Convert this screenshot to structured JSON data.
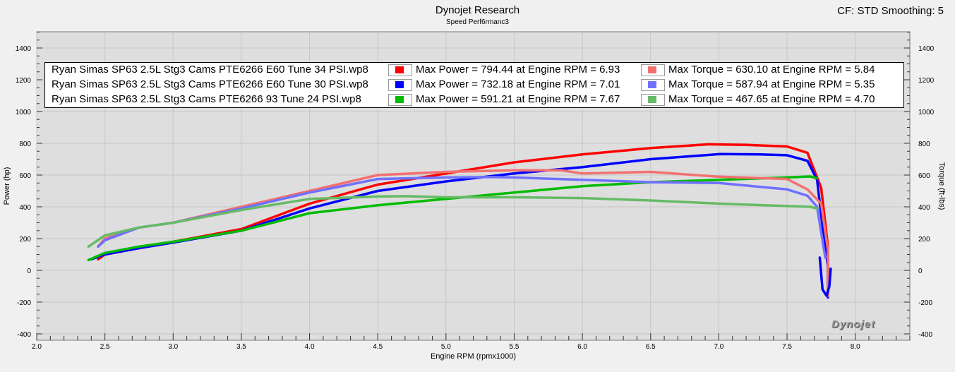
{
  "header": {
    "title": "Dynojet Research",
    "subtitle": "Speed Perf6rmanc3",
    "cf_info": "CF: STD Smoothing: 5"
  },
  "logo_text": "Dynojet",
  "legend": [
    {
      "run": "Ryan Simas SP63 2.5L Stg3 Cams PTE6266 E60 Tune 34 PSI.wp8",
      "power_text": "Max Power = 794.44 at Engine RPM = 6.93",
      "torque_text": "Max Torque = 630.10 at Engine RPM = 5.84",
      "power_color": "#ff0000",
      "torque_color": "#f37070"
    },
    {
      "run": "Ryan Simas SP63 2.5L Stg3 Cams PTE6266 E60 Tune 30 PSI.wp8",
      "power_text": "Max Power = 732.18 at Engine RPM = 7.01",
      "torque_text": "Max Torque = 587.94 at Engine RPM = 5.35",
      "power_color": "#0000ff",
      "torque_color": "#7070ff"
    },
    {
      "run": "Ryan Simas SP63 2.5L Stg3 Cams PTE6266 93 Tune 24 PSI.wp8",
      "power_text": "Max Power = 591.21 at Engine RPM = 7.67",
      "torque_text": "Max Torque = 467.65 at Engine RPM = 4.70",
      "power_color": "#00bb00",
      "torque_color": "#66bb66"
    }
  ],
  "chart_data": {
    "type": "line",
    "xlabel": "Engine RPM (rpmx1000)",
    "ylabel": "Power (hp)",
    "y2label": "Torque (ft-lbs)",
    "xlim": [
      2.0,
      8.4
    ],
    "ylim": [
      -400,
      1500
    ],
    "y2lim": [
      -400,
      1500
    ],
    "xticks": [
      "2.0",
      "2.5",
      "3.0",
      "3.5",
      "4.0",
      "4.5",
      "5.0",
      "5.5",
      "6.0",
      "6.5",
      "7.0",
      "7.5",
      "8.0"
    ],
    "yticks": [
      "-400",
      "-200",
      "0",
      "200",
      "400",
      "600",
      "800",
      "1000",
      "1200",
      "1400"
    ],
    "y2ticks": [
      "-400",
      "-200",
      "0",
      "200",
      "400",
      "600",
      "800",
      "1000",
      "1200",
      "1400"
    ],
    "grid": true,
    "legend_position": "top",
    "series": [
      {
        "name": "Ryan Simas SP63 2.5L Stg3 Cams PTE6266 E60 Tune 34 PSI.wp8",
        "kind": "power",
        "color": "#ff0000",
        "x": [
          2.45,
          2.5,
          2.75,
          3.0,
          3.5,
          4.0,
          4.5,
          5.0,
          5.5,
          6.0,
          6.5,
          6.93,
          7.2,
          7.5,
          7.65,
          7.75,
          7.8,
          7.8
        ],
        "y": [
          70,
          100,
          140,
          180,
          260,
          420,
          540,
          610,
          680,
          730,
          770,
          794,
          790,
          780,
          740,
          520,
          150,
          -160
        ]
      },
      {
        "name": "Ryan Simas SP63 2.5L Stg3 Cams PTE6266 E60 Tune 30 PSI.wp8",
        "kind": "power",
        "color": "#0000ff",
        "x": [
          2.4,
          2.5,
          2.75,
          3.0,
          3.5,
          4.0,
          4.5,
          5.0,
          5.5,
          6.0,
          6.5,
          7.01,
          7.3,
          7.5,
          7.65,
          7.72,
          7.75,
          7.8,
          7.8
        ],
        "y": [
          70,
          100,
          140,
          175,
          250,
          390,
          500,
          560,
          610,
          650,
          700,
          732,
          730,
          725,
          690,
          570,
          350,
          20,
          -170
        ]
      },
      {
        "name": "Ryan Simas SP63 2.5L Stg3 Cams PTE6266 93 Tune 24 PSI.wp8",
        "kind": "power",
        "color": "#00bb00",
        "x": [
          2.38,
          2.5,
          2.75,
          3.0,
          3.5,
          4.0,
          4.5,
          5.0,
          5.5,
          6.0,
          6.5,
          7.0,
          7.5,
          7.67,
          7.72
        ],
        "y": [
          65,
          110,
          150,
          180,
          250,
          360,
          410,
          450,
          490,
          530,
          555,
          570,
          585,
          591,
          580
        ]
      },
      {
        "name": "Ryan Simas SP63 2.5L Stg3 Cams PTE6266 E60 Tune 34 PSI.wp8",
        "kind": "torque",
        "color": "#f37070",
        "x": [
          2.45,
          2.5,
          2.75,
          3.0,
          3.5,
          4.0,
          4.5,
          5.0,
          5.5,
          5.84,
          6.0,
          6.5,
          7.0,
          7.5,
          7.65,
          7.75,
          7.8,
          7.8
        ],
        "y": [
          150,
          200,
          270,
          300,
          400,
          500,
          600,
          620,
          630,
          630,
          610,
          620,
          590,
          575,
          510,
          420,
          130,
          -160
        ]
      },
      {
        "name": "Ryan Simas SP63 2.5L Stg3 Cams PTE6266 E60 Tune 30 PSI.wp8",
        "kind": "torque",
        "color": "#7070ff",
        "x": [
          2.45,
          2.5,
          2.75,
          3.0,
          3.5,
          4.0,
          4.5,
          5.0,
          5.35,
          5.5,
          6.0,
          6.5,
          7.0,
          7.5,
          7.65,
          7.72,
          7.78
        ],
        "y": [
          150,
          190,
          270,
          300,
          390,
          490,
          575,
          585,
          588,
          585,
          570,
          555,
          550,
          510,
          470,
          400,
          80
        ]
      },
      {
        "name": "Ryan Simas SP63 2.5L Stg3 Cams PTE6266 93 Tune 24 PSI.wp8",
        "kind": "torque",
        "color": "#66bb66",
        "x": [
          2.38,
          2.5,
          2.75,
          3.0,
          3.5,
          4.0,
          4.5,
          4.7,
          5.0,
          5.5,
          6.0,
          6.5,
          7.0,
          7.5,
          7.67,
          7.72
        ],
        "y": [
          150,
          220,
          270,
          300,
          380,
          450,
          465,
          467,
          460,
          460,
          455,
          440,
          420,
          405,
          400,
          390
        ]
      },
      {
        "name": "",
        "kind": "hook",
        "color": "#0000ff",
        "x": [
          7.74,
          7.76,
          7.79,
          7.81,
          7.82
        ],
        "y": [
          80,
          -120,
          -160,
          -100,
          10
        ]
      }
    ]
  }
}
